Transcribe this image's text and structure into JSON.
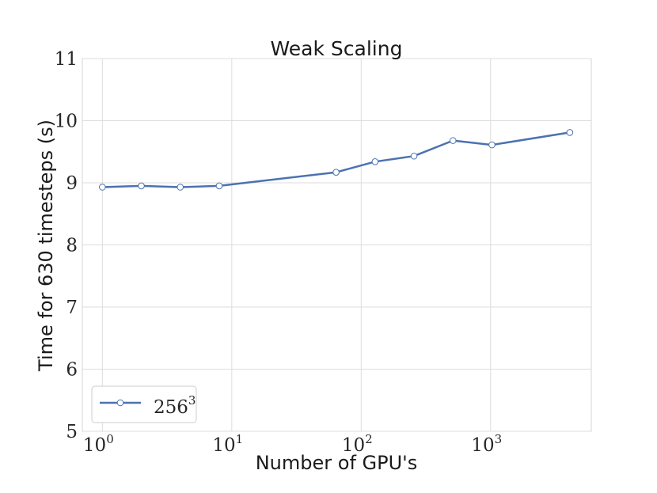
{
  "chart_data": {
    "type": "line",
    "title": "Weak Scaling",
    "xlabel": "Number of GPU's",
    "ylabel": "Time for 630 timesteps (s)",
    "x_scale": "log",
    "xlim": [
      0.7,
      6000
    ],
    "ylim": [
      5,
      11
    ],
    "grid": true,
    "x_ticks": [
      {
        "value": 1,
        "base": "10",
        "exp": "0"
      },
      {
        "value": 10,
        "base": "10",
        "exp": "1"
      },
      {
        "value": 100,
        "base": "10",
        "exp": "2"
      },
      {
        "value": 1000,
        "base": "10",
        "exp": "3"
      }
    ],
    "y_ticks": [
      {
        "value": 5,
        "label": "5"
      },
      {
        "value": 6,
        "label": "6"
      },
      {
        "value": 7,
        "label": "7"
      },
      {
        "value": 8,
        "label": "8"
      },
      {
        "value": 9,
        "label": "9"
      },
      {
        "value": 10,
        "label": "10"
      },
      {
        "value": 11,
        "label": "11"
      }
    ],
    "legend_position": "lower-left",
    "series": [
      {
        "name_base": "256",
        "name_exp": "3",
        "color": "#4c72b0",
        "marker": "circle-open",
        "x": [
          1,
          2,
          4,
          8,
          64,
          128,
          256,
          512,
          1024,
          4096
        ],
        "y": [
          8.93,
          8.95,
          8.93,
          8.95,
          9.17,
          9.34,
          9.43,
          9.68,
          9.61,
          9.81
        ]
      }
    ]
  }
}
